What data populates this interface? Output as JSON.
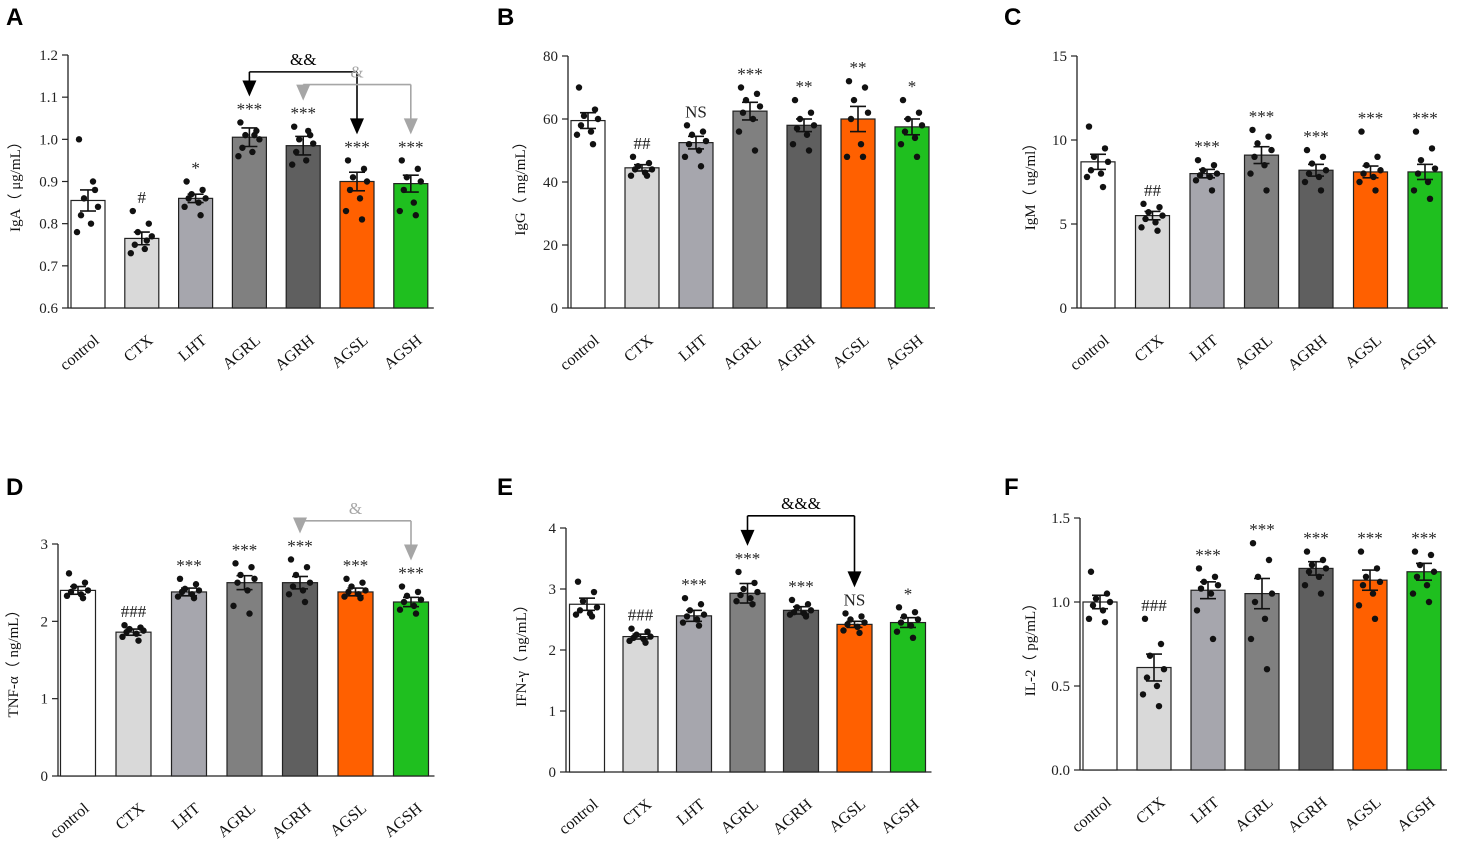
{
  "chart_data": [
    {
      "panel": "A",
      "type": "bar",
      "ylabel": "IgA（ μg/mL）",
      "ylim": [
        0.6,
        1.2
      ],
      "yticks": [
        "0.6",
        "0.7",
        "0.8",
        "0.9",
        "1.0",
        "1.1",
        "1.2"
      ],
      "categories": [
        "control",
        "CTX",
        "LHT",
        "AGRL",
        "AGRH",
        "AGSL",
        "AGSH"
      ],
      "values": [
        0.855,
        0.765,
        0.86,
        1.005,
        0.985,
        0.9,
        0.895
      ],
      "errors": [
        0.025,
        0.015,
        0.01,
        0.022,
        0.022,
        0.022,
        0.02
      ],
      "points": [
        [
          1.0,
          0.88,
          0.86,
          0.84,
          0.82,
          0.8,
          0.78,
          0.9
        ],
        [
          0.83,
          0.8,
          0.78,
          0.77,
          0.75,
          0.74,
          0.73,
          0.76
        ],
        [
          0.9,
          0.88,
          0.87,
          0.86,
          0.86,
          0.85,
          0.84,
          0.82
        ],
        [
          1.04,
          1.02,
          1.01,
          1.0,
          0.98,
          0.97,
          0.96,
          1.01
        ],
        [
          1.03,
          1.01,
          1.0,
          0.99,
          0.97,
          0.95,
          0.94,
          1.02
        ],
        [
          0.95,
          0.93,
          0.91,
          0.9,
          0.88,
          0.86,
          0.83,
          0.81
        ],
        [
          0.95,
          0.93,
          0.91,
          0.9,
          0.88,
          0.85,
          0.83,
          0.82
        ]
      ],
      "sig": [
        "",
        "#",
        "*",
        "***",
        "***",
        "***",
        "***"
      ],
      "comparisons": [
        {
          "from": 3,
          "to": 5,
          "label": "&&",
          "color": "#000000",
          "level": 1.16
        },
        {
          "from": 4,
          "to": 6,
          "label": "&",
          "color": "#a6a6a6",
          "level": 1.13
        }
      ],
      "colors": [
        "#ffffff",
        "#d9d9d9",
        "#a6a6ad",
        "#808080",
        "#5f5f5f",
        "#ff6000",
        "#1fbf1f"
      ]
    },
    {
      "panel": "B",
      "type": "bar",
      "ylabel": "IgG（ mg/mL）",
      "ylim": [
        0,
        80
      ],
      "yticks": [
        "0",
        "20",
        "40",
        "60",
        "80"
      ],
      "categories": [
        "control",
        "CTX",
        "LHT",
        "AGRL",
        "AGRH",
        "AGSL",
        "AGSH"
      ],
      "values": [
        59.5,
        44.5,
        52.5,
        62.5,
        58.0,
        60.0,
        57.5
      ],
      "errors": [
        2.5,
        1.0,
        2.0,
        2.8,
        2.0,
        4.0,
        2.5
      ],
      "points": [
        [
          70,
          63,
          61,
          60,
          58,
          56,
          55,
          52
        ],
        [
          48,
          46,
          45,
          44,
          44,
          43,
          42,
          42
        ],
        [
          58,
          56,
          55,
          53,
          52,
          50,
          48,
          45
        ],
        [
          70,
          68,
          66,
          64,
          62,
          60,
          56,
          50
        ],
        [
          66,
          62,
          60,
          58,
          57,
          55,
          52,
          50
        ],
        [
          72,
          70,
          66,
          62,
          60,
          52,
          48,
          48
        ],
        [
          66,
          62,
          60,
          58,
          56,
          54,
          52,
          48
        ]
      ],
      "sig": [
        "",
        "##",
        "NS",
        "***",
        "**",
        "**",
        "*"
      ],
      "comparisons": [],
      "colors": [
        "#ffffff",
        "#d9d9d9",
        "#a6a6ad",
        "#808080",
        "#5f5f5f",
        "#ff6000",
        "#1fbf1f"
      ]
    },
    {
      "panel": "C",
      "type": "bar",
      "ylabel": "IgM（ ug/ml）",
      "ylim": [
        0,
        15
      ],
      "yticks": [
        "0",
        "5",
        "10",
        "15"
      ],
      "categories": [
        "control",
        "CTX",
        "LHT",
        "AGRL",
        "AGRH",
        "AGSL",
        "AGSH"
      ],
      "values": [
        8.7,
        5.5,
        8.0,
        9.1,
        8.2,
        8.1,
        8.1
      ],
      "errors": [
        0.45,
        0.25,
        0.25,
        0.5,
        0.35,
        0.35,
        0.45
      ],
      "points": [
        [
          10.8,
          9.5,
          9.0,
          8.7,
          8.2,
          8.0,
          7.8,
          7.2
        ],
        [
          6.2,
          6.0,
          5.7,
          5.5,
          5.3,
          5.1,
          4.8,
          4.6
        ],
        [
          8.8,
          8.5,
          8.2,
          8.0,
          7.9,
          7.8,
          7.6,
          7.0
        ],
        [
          10.6,
          10.2,
          9.8,
          9.4,
          9.0,
          8.5,
          8.0,
          7.0
        ],
        [
          9.4,
          9.0,
          8.6,
          8.2,
          8.0,
          7.8,
          7.5,
          7.0
        ],
        [
          10.5,
          9.0,
          8.5,
          8.2,
          8.0,
          7.8,
          7.5,
          7.0
        ],
        [
          10.5,
          9.5,
          8.8,
          8.3,
          8.0,
          7.5,
          7.0,
          6.5
        ]
      ],
      "sig": [
        "",
        "##",
        "***",
        "***",
        "***",
        "***",
        "***"
      ],
      "comparisons": [],
      "colors": [
        "#ffffff",
        "#d9d9d9",
        "#a6a6ad",
        "#808080",
        "#5f5f5f",
        "#ff6000",
        "#1fbf1f"
      ]
    },
    {
      "panel": "D",
      "type": "bar",
      "ylabel": "TNF-α（ ng/mL）",
      "ylim": [
        0,
        3
      ],
      "yticks": [
        "0",
        "1",
        "2",
        "3"
      ],
      "categories": [
        "control",
        "CTX",
        "LHT",
        "AGRL",
        "AGRH",
        "AGSL",
        "AGSH"
      ],
      "values": [
        2.4,
        1.86,
        2.38,
        2.5,
        2.5,
        2.38,
        2.25
      ],
      "errors": [
        0.05,
        0.04,
        0.05,
        0.09,
        0.08,
        0.05,
        0.06
      ],
      "points": [
        [
          2.62,
          2.5,
          2.45,
          2.4,
          2.38,
          2.35,
          2.33,
          2.3
        ],
        [
          1.95,
          1.92,
          1.9,
          1.88,
          1.86,
          1.84,
          1.8,
          1.75
        ],
        [
          2.55,
          2.48,
          2.42,
          2.4,
          2.38,
          2.35,
          2.32,
          2.3
        ],
        [
          2.75,
          2.7,
          2.6,
          2.55,
          2.5,
          2.4,
          2.2,
          2.1
        ],
        [
          2.8,
          2.7,
          2.6,
          2.5,
          2.45,
          2.4,
          2.35,
          2.25
        ],
        [
          2.55,
          2.5,
          2.45,
          2.4,
          2.38,
          2.35,
          2.32,
          2.3
        ],
        [
          2.45,
          2.38,
          2.33,
          2.28,
          2.25,
          2.2,
          2.15,
          2.1
        ]
      ],
      "sig": [
        "",
        "###",
        "***",
        "***",
        "***",
        "***",
        "***"
      ],
      "comparisons": [
        {
          "from": 4,
          "to": 6,
          "label": "&",
          "color": "#a6a6a6",
          "level": 3.3
        }
      ],
      "colors": [
        "#ffffff",
        "#d9d9d9",
        "#a6a6ad",
        "#808080",
        "#5f5f5f",
        "#ff6000",
        "#1fbf1f"
      ]
    },
    {
      "panel": "E",
      "type": "bar",
      "ylabel": "IFN-γ（ ng/mL）",
      "ylim": [
        0,
        4
      ],
      "yticks": [
        "0",
        "1",
        "2",
        "3",
        "4"
      ],
      "categories": [
        "control",
        "CTX",
        "LHT",
        "AGRL",
        "AGRH",
        "AGSL",
        "AGSH"
      ],
      "values": [
        2.75,
        2.22,
        2.56,
        2.93,
        2.65,
        2.42,
        2.45
      ],
      "errors": [
        0.1,
        0.04,
        0.09,
        0.16,
        0.06,
        0.05,
        0.08
      ],
      "points": [
        [
          3.12,
          2.95,
          2.8,
          2.7,
          2.65,
          2.6,
          2.58,
          2.55
        ],
        [
          2.35,
          2.3,
          2.25,
          2.22,
          2.2,
          2.18,
          2.15,
          2.12
        ],
        [
          2.85,
          2.75,
          2.65,
          2.58,
          2.55,
          2.5,
          2.45,
          2.4
        ],
        [
          3.28,
          3.1,
          3.0,
          2.95,
          2.9,
          2.85,
          2.8,
          2.75
        ],
        [
          2.82,
          2.75,
          2.7,
          2.65,
          2.62,
          2.6,
          2.58,
          2.55
        ],
        [
          2.6,
          2.55,
          2.5,
          2.45,
          2.42,
          2.38,
          2.32,
          2.28
        ],
        [
          2.7,
          2.62,
          2.55,
          2.5,
          2.45,
          2.4,
          2.3,
          2.2
        ]
      ],
      "sig": [
        "",
        "###",
        "***",
        "***",
        "***",
        "NS",
        "*"
      ],
      "comparisons": [
        {
          "from": 3,
          "to": 5,
          "label": "&&&",
          "color": "#000000",
          "level": 4.2
        }
      ],
      "colors": [
        "#ffffff",
        "#d9d9d9",
        "#a6a6ad",
        "#808080",
        "#5f5f5f",
        "#ff6000",
        "#1fbf1f"
      ]
    },
    {
      "panel": "F",
      "type": "bar",
      "ylabel": "IL-2（ pg/mL）",
      "ylim": [
        0.0,
        1.5
      ],
      "yticks": [
        "0.0",
        "0.5",
        "1.0",
        "1.5"
      ],
      "categories": [
        "control",
        "CTX",
        "LHT",
        "AGRL",
        "AGRH",
        "AGSL",
        "AGSH"
      ],
      "values": [
        1.0,
        0.61,
        1.07,
        1.05,
        1.2,
        1.13,
        1.18
      ],
      "errors": [
        0.04,
        0.08,
        0.05,
        0.09,
        0.04,
        0.06,
        0.05
      ],
      "points": [
        [
          1.18,
          1.05,
          1.02,
          1.0,
          0.98,
          0.95,
          0.9,
          0.88
        ],
        [
          0.9,
          0.75,
          0.68,
          0.6,
          0.55,
          0.5,
          0.45,
          0.38
        ],
        [
          1.2,
          1.15,
          1.12,
          1.1,
          1.08,
          1.05,
          0.95,
          0.78
        ],
        [
          1.35,
          1.25,
          1.15,
          1.05,
          1.0,
          0.9,
          0.78,
          0.6
        ],
        [
          1.3,
          1.25,
          1.22,
          1.2,
          1.18,
          1.15,
          1.1,
          1.05
        ],
        [
          1.3,
          1.2,
          1.15,
          1.12,
          1.1,
          1.05,
          0.98,
          0.9
        ],
        [
          1.3,
          1.28,
          1.22,
          1.18,
          1.15,
          1.1,
          1.05,
          1.0
        ]
      ],
      "sig": [
        "",
        "###",
        "***",
        "***",
        "***",
        "***",
        "***"
      ],
      "comparisons": [],
      "colors": [
        "#ffffff",
        "#d9d9d9",
        "#a6a6ad",
        "#808080",
        "#5f5f5f",
        "#ff6000",
        "#1fbf1f"
      ]
    }
  ]
}
